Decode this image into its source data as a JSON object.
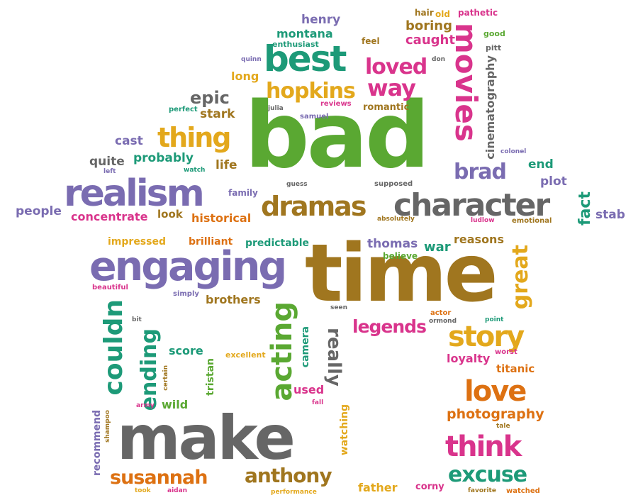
{
  "colors": {
    "green": "#5aa832",
    "purple": "#7a6cb1",
    "gold": "#e3a81c",
    "brown": "#a0761f",
    "teal": "#1d9a78",
    "orange": "#dd7112",
    "magenta": "#d9348c",
    "gray": "#666666"
  },
  "words": [
    {
      "t": "bad"
    },
    {
      "t": "time"
    },
    {
      "t": "make"
    },
    {
      "t": "engaging"
    },
    {
      "t": "realism"
    },
    {
      "t": "character"
    },
    {
      "t": "movies"
    },
    {
      "t": "best"
    },
    {
      "t": "dramas"
    },
    {
      "t": "thing"
    },
    {
      "t": "hopkins"
    },
    {
      "t": "loved"
    },
    {
      "t": "way"
    },
    {
      "t": "brad"
    },
    {
      "t": "acting"
    },
    {
      "t": "couldn"
    },
    {
      "t": "ending"
    },
    {
      "t": "story"
    },
    {
      "t": "love"
    },
    {
      "t": "think"
    },
    {
      "t": "excuse"
    },
    {
      "t": "susannah"
    },
    {
      "t": "anthony"
    },
    {
      "t": "great"
    },
    {
      "t": "really"
    },
    {
      "t": "legends"
    },
    {
      "t": "photography"
    },
    {
      "t": "cinematography"
    },
    {
      "t": "epic"
    },
    {
      "t": "stark"
    },
    {
      "t": "cast"
    },
    {
      "t": "probably"
    },
    {
      "t": "life"
    },
    {
      "t": "quite"
    },
    {
      "t": "people"
    },
    {
      "t": "concentrate"
    },
    {
      "t": "look"
    },
    {
      "t": "historical"
    },
    {
      "t": "family"
    },
    {
      "t": "fact"
    },
    {
      "t": "stab"
    },
    {
      "t": "plot"
    },
    {
      "t": "end"
    },
    {
      "t": "henry"
    },
    {
      "t": "montana"
    },
    {
      "t": "enthusiast"
    },
    {
      "t": "feel"
    },
    {
      "t": "boring"
    },
    {
      "t": "caught"
    },
    {
      "t": "hair"
    },
    {
      "t": "old"
    },
    {
      "t": "pathetic"
    },
    {
      "t": "good"
    },
    {
      "t": "pitt"
    },
    {
      "t": "don"
    },
    {
      "t": "quinn"
    },
    {
      "t": "long"
    },
    {
      "t": "romantic"
    },
    {
      "t": "reviews"
    },
    {
      "t": "julia"
    },
    {
      "t": "samuel"
    },
    {
      "t": "perfect"
    },
    {
      "t": "left"
    },
    {
      "t": "watch"
    },
    {
      "t": "colonel"
    },
    {
      "t": "guess"
    },
    {
      "t": "supposed"
    },
    {
      "t": "absolutely"
    },
    {
      "t": "ludlow"
    },
    {
      "t": "emotional"
    },
    {
      "t": "impressed"
    },
    {
      "t": "brilliant"
    },
    {
      "t": "predictable"
    },
    {
      "t": "thomas"
    },
    {
      "t": "war"
    },
    {
      "t": "reasons"
    },
    {
      "t": "believe"
    },
    {
      "t": "beautiful"
    },
    {
      "t": "simply"
    },
    {
      "t": "brothers"
    },
    {
      "t": "bit"
    },
    {
      "t": "seen"
    },
    {
      "t": "actor"
    },
    {
      "t": "ormond"
    },
    {
      "t": "point"
    },
    {
      "t": "score"
    },
    {
      "t": "excellent"
    },
    {
      "t": "tristan"
    },
    {
      "t": "camera"
    },
    {
      "t": "certain"
    },
    {
      "t": "worst"
    },
    {
      "t": "loyalty"
    },
    {
      "t": "titanic"
    },
    {
      "t": "used"
    },
    {
      "t": "fall"
    },
    {
      "t": "wild"
    },
    {
      "t": "army"
    },
    {
      "t": "watching"
    },
    {
      "t": "recommend"
    },
    {
      "t": "shampoo"
    },
    {
      "t": "tale"
    },
    {
      "t": "performance"
    },
    {
      "t": "father"
    },
    {
      "t": "corny"
    },
    {
      "t": "favorite"
    },
    {
      "t": "watched"
    },
    {
      "t": "took"
    },
    {
      "t": "aidan"
    }
  ]
}
